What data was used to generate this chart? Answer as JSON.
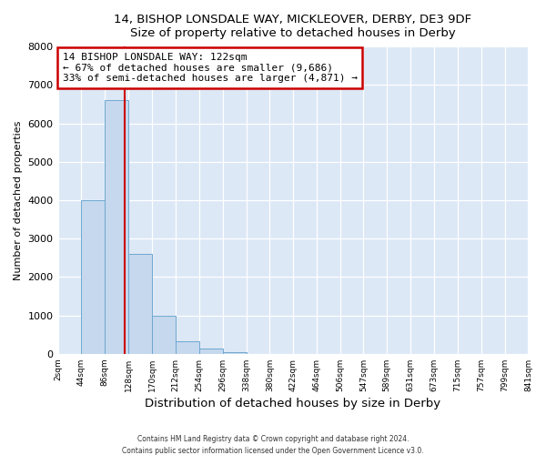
{
  "title": "14, BISHOP LONSDALE WAY, MICKLEOVER, DERBY, DE3 9DF",
  "subtitle": "Size of property relative to detached houses in Derby",
  "xlabel": "Distribution of detached houses by size in Derby",
  "ylabel": "Number of detached properties",
  "bin_edges": [
    2,
    44,
    86,
    128,
    170,
    212,
    254,
    296,
    338,
    380,
    422,
    464,
    506,
    547,
    589,
    631,
    673,
    715,
    757,
    799,
    841
  ],
  "bar_heights": [
    0,
    4000,
    6600,
    2600,
    1000,
    330,
    130,
    50,
    0,
    0,
    0,
    0,
    0,
    0,
    0,
    0,
    0,
    0,
    0,
    0
  ],
  "bar_color": "#c5d8ee",
  "bar_edgecolor": "#6fa8d0",
  "property_size": 122,
  "vline_color": "#cc0000",
  "annotation_line1": "14 BISHOP LONSDALE WAY: 122sqm",
  "annotation_line2": "← 67% of detached houses are smaller (9,686)",
  "annotation_line3": "33% of semi-detached houses are larger (4,871) →",
  "annotation_box_edgecolor": "#cc0000",
  "ylim": [
    0,
    8000
  ],
  "yticks": [
    0,
    1000,
    2000,
    3000,
    4000,
    5000,
    6000,
    7000,
    8000
  ],
  "xtick_labels": [
    "2sqm",
    "44sqm",
    "86sqm",
    "128sqm",
    "170sqm",
    "212sqm",
    "254sqm",
    "296sqm",
    "338sqm",
    "380sqm",
    "422sqm",
    "464sqm",
    "506sqm",
    "547sqm",
    "589sqm",
    "631sqm",
    "673sqm",
    "715sqm",
    "757sqm",
    "799sqm",
    "841sqm"
  ],
  "footer1": "Contains HM Land Registry data © Crown copyright and database right 2024.",
  "footer2": "Contains public sector information licensed under the Open Government Licence v3.0.",
  "bg_color": "#ffffff",
  "plot_bg_color": "#dce8f5"
}
